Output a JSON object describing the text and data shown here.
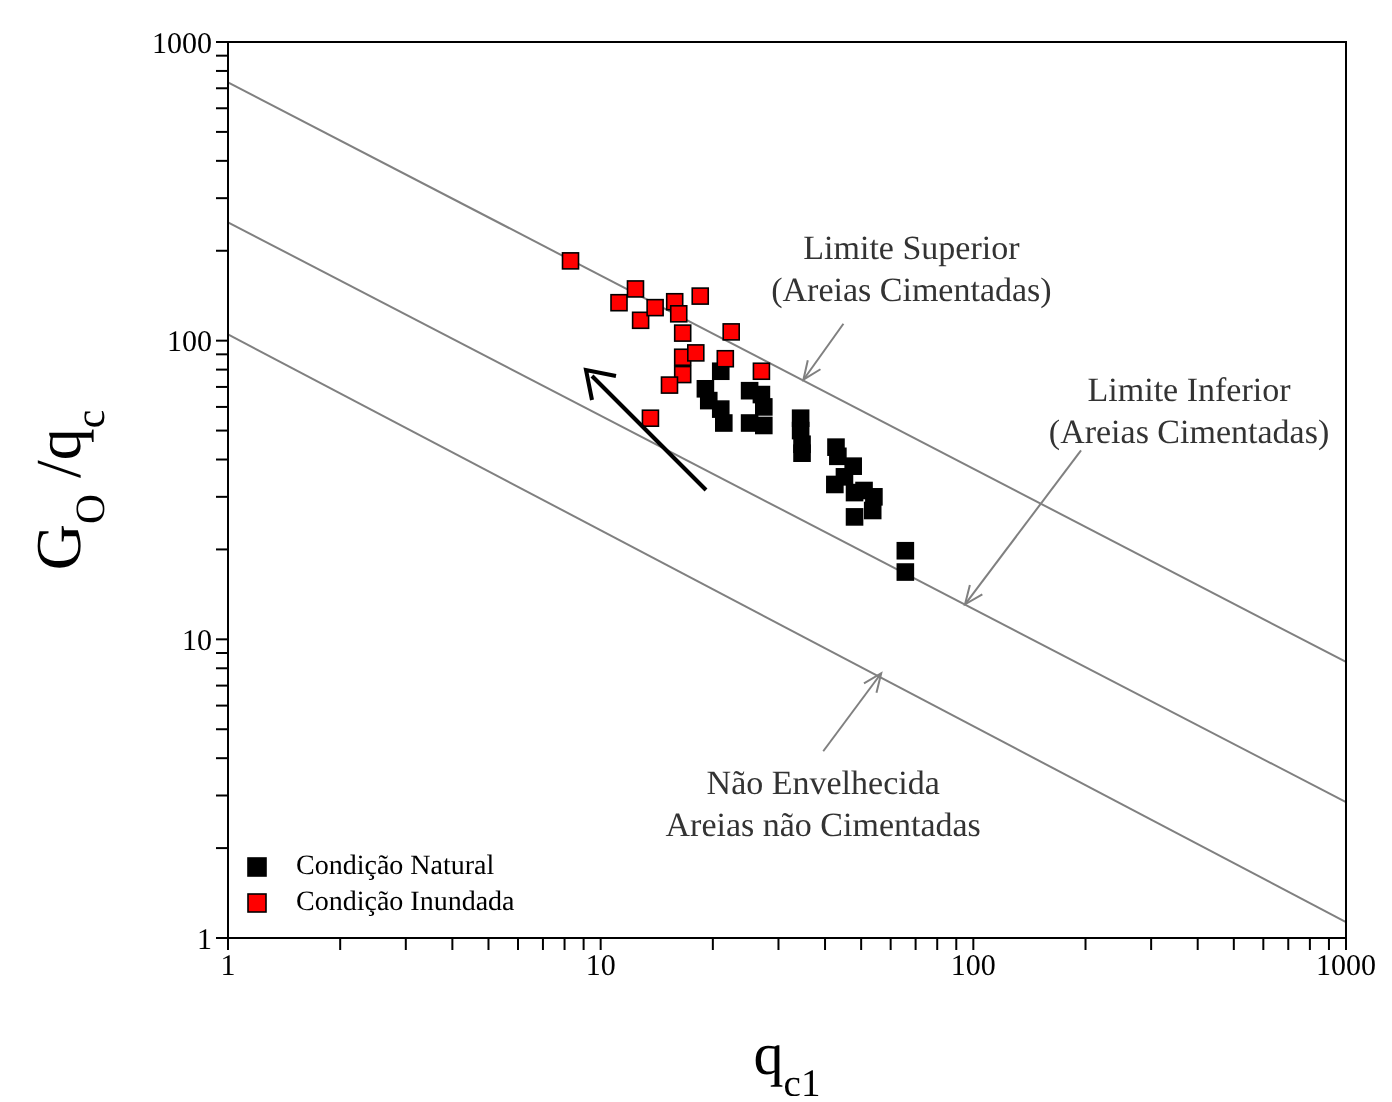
{
  "chart_data": {
    "type": "scatter",
    "xlabel": "q$_{c1}$",
    "ylabel": "G$_{O}$/q$_{c}$",
    "log": "xy",
    "grid": false,
    "legend": "bottom left",
    "marker": "square",
    "xlim": [
      1,
      1000
    ],
    "ylim": [
      1,
      1000
    ],
    "xticks": [
      1,
      {
        "value": 2,
        "label": null
      },
      {
        "value": 3,
        "label": null
      },
      {
        "value": 4,
        "label": null
      },
      {
        "value": 5,
        "label": null
      },
      {
        "value": 6,
        "label": null
      },
      {
        "value": 7,
        "label": null
      },
      {
        "value": 8,
        "label": null
      },
      {
        "value": 9,
        "label": null
      },
      10,
      {
        "value": 20,
        "label": null
      },
      {
        "value": 30,
        "label": null
      },
      {
        "value": 40,
        "label": null
      },
      {
        "value": 50,
        "label": null
      },
      {
        "value": 60,
        "label": null
      },
      {
        "value": 70,
        "label": null
      },
      {
        "value": 80,
        "label": null
      },
      {
        "value": 90,
        "label": null
      },
      100,
      {
        "value": 200,
        "label": null
      },
      {
        "value": 300,
        "label": null
      },
      {
        "value": 400,
        "label": null
      },
      {
        "value": 500,
        "label": null
      },
      {
        "value": 600,
        "label": null
      },
      {
        "value": 700,
        "label": null
      },
      {
        "value": 800,
        "label": null
      },
      {
        "value": 900,
        "label": null
      },
      1000
    ],
    "yticks": [
      1,
      {
        "value": 2,
        "label": null
      },
      {
        "value": 3,
        "label": null
      },
      {
        "value": 4,
        "label": null
      },
      {
        "value": 5,
        "label": null
      },
      {
        "value": 6,
        "label": null
      },
      {
        "value": 7,
        "label": null
      },
      {
        "value": 8,
        "label": null
      },
      {
        "value": 9,
        "label": null
      },
      10,
      {
        "value": 20,
        "label": null
      },
      {
        "value": 30,
        "label": null
      },
      {
        "value": 40,
        "label": null
      },
      {
        "value": 50,
        "label": null
      },
      {
        "value": 60,
        "label": null
      },
      {
        "value": 70,
        "label": null
      },
      {
        "value": 80,
        "label": null
      },
      {
        "value": 90,
        "label": null
      },
      100,
      {
        "value": 200,
        "label": null
      },
      {
        "value": 300,
        "label": null
      },
      {
        "value": 400,
        "label": null
      },
      {
        "value": 500,
        "label": null
      },
      {
        "value": 600,
        "label": null
      },
      {
        "value": 700,
        "label": null
      },
      {
        "value": 800,
        "label": null
      },
      {
        "value": 900,
        "label": null
      },
      1000
    ],
    "series": [
      {
        "name": "Condição Natural",
        "color": "#000000",
        "x": [
          21,
          19.1,
          19.5,
          21,
          21.4,
          25.1,
          27,
          27.4,
          25.1,
          27.4,
          34.4,
          34.4,
          34.7,
          34.7,
          42.8,
          43.3,
          47.6,
          42.5,
          45.1,
          48,
          50.9,
          53.7,
          48,
          54.1,
          65.7,
          65.7
        ],
        "values": [
          79,
          69,
          63,
          59,
          53,
          68,
          66,
          60,
          53,
          52,
          55,
          50,
          45,
          42,
          44,
          41,
          38,
          33,
          35,
          31,
          31.5,
          27,
          25.7,
          30,
          19.8,
          16.8
        ]
      },
      {
        "name": "Condição Inundada",
        "color": "#ff0000",
        "x": [
          8.3,
          11.2,
          12.4,
          12.8,
          14,
          15.8,
          16.2,
          18.5,
          16.6,
          22.4,
          16.6,
          18,
          21.6,
          16.6,
          15.3,
          27,
          13.6
        ],
        "values": [
          185,
          134,
          149,
          117,
          129,
          135,
          123,
          141,
          106,
          107,
          88,
          91,
          87,
          77,
          71,
          79,
          55
        ]
      },
      {
        "type": "line",
        "color": "#808080",
        "marker": "none",
        "line_style": "solid",
        "x": [
          1,
          1000
        ],
        "values": [
          733,
          8.4
        ]
      },
      {
        "type": "line",
        "color": "#808080",
        "marker": "none",
        "line_style": "solid",
        "x": [
          1,
          1000
        ],
        "values": [
          249,
          2.85
        ]
      },
      {
        "type": "line",
        "color": "#808080",
        "marker": "none",
        "line_style": "solid",
        "x": [
          1,
          1000
        ],
        "values": [
          105,
          1.13
        ]
      }
    ],
    "annotations": [
      {
        "text": "Limite Superior\n(Areias Cimentadas)",
        "x": 35,
        "y": 74
      },
      {
        "text": "Limite Inferior\n(Areias Cimentadas)",
        "x": 95,
        "y": 13.1
      },
      {
        "text": "Não Envelhecida\nAreias não Cimentadas",
        "x": 56.6,
        "y": 7.7
      }
    ]
  }
}
